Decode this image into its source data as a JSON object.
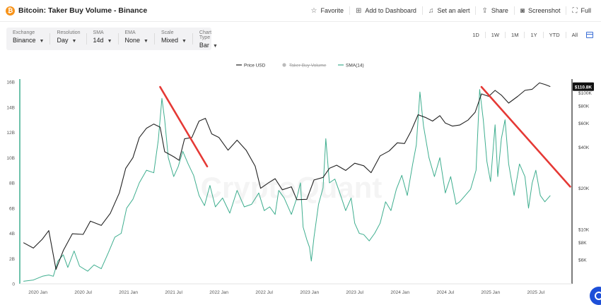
{
  "header": {
    "title": "Bitcoin: Taker Buy Volume - Binance",
    "actions": [
      {
        "label": "Favorite",
        "icon": "star-icon"
      },
      {
        "label": "Add to Dashboard",
        "icon": "dashboard-add-icon"
      },
      {
        "label": "Set an alert",
        "icon": "bell-icon"
      },
      {
        "label": "Share",
        "icon": "share-icon"
      },
      {
        "label": "Screenshot",
        "icon": "camera-icon"
      },
      {
        "label": "Full",
        "icon": "fullscreen-icon"
      }
    ]
  },
  "toolbar": {
    "controls": [
      {
        "label": "Exchange",
        "value": "Binance"
      },
      {
        "label": "Resolution",
        "value": "Day"
      },
      {
        "label": "SMA",
        "value": "14d"
      },
      {
        "label": "EMA",
        "value": "None"
      },
      {
        "label": "Scale",
        "value": "Mixed"
      },
      {
        "label": "Chart Type",
        "value": "Bar"
      }
    ]
  },
  "time_ranges": [
    "1D",
    "1W",
    "1M",
    "1Y",
    "YTD",
    "All"
  ],
  "watermark": "CryptoQuant",
  "chart_data": {
    "type": "line",
    "title": "",
    "legend": [
      {
        "name": "Price USD",
        "color": "#222222",
        "style": "line"
      },
      {
        "name": "Taker Buy Volume",
        "color": "#bbbbbb",
        "style": "dot",
        "disabled": true
      },
      {
        "name": "SMA(14)",
        "color": "#3fae8f",
        "style": "line"
      }
    ],
    "legend_position": "top-center",
    "x_ticks": [
      "2020 Jan",
      "2020 Jul",
      "2021 Jan",
      "2021 Jul",
      "2022 Jan",
      "2022 Jul",
      "2023 Jan",
      "2023 Jul",
      "2024 Jan",
      "2024 Jul",
      "2025 Jan",
      "2025 Jul"
    ],
    "x_range": [
      2019.8,
      2025.9
    ],
    "left_axis": {
      "ticks": [
        "0",
        "2B",
        "4B",
        "6B",
        "8B",
        "10B",
        "12B",
        "14B",
        "16B"
      ],
      "values": [
        0,
        2,
        4,
        6,
        8,
        10,
        12,
        14,
        16
      ],
      "unit": "B",
      "range": [
        0,
        16
      ]
    },
    "right_axis": {
      "scale": "log",
      "ticks": [
        "$6K",
        "$8K",
        "$10K",
        "$20K",
        "$40K",
        "$60K",
        "$80K",
        "$100K"
      ],
      "values": [
        6000,
        8000,
        10000,
        20000,
        40000,
        60000,
        80000,
        100000
      ],
      "range": [
        4000,
        120000
      ]
    },
    "current_price_label": "$110.8K",
    "current_price": 110800,
    "series": [
      {
        "name": "Price USD",
        "axis": "right",
        "color": "#222222",
        "points": [
          [
            2019.84,
            8000
          ],
          [
            2019.95,
            7300
          ],
          [
            2020.05,
            8500
          ],
          [
            2020.12,
            9800
          ],
          [
            2020.2,
            5100
          ],
          [
            2020.28,
            7000
          ],
          [
            2020.38,
            9300
          ],
          [
            2020.5,
            9200
          ],
          [
            2020.58,
            11500
          ],
          [
            2020.7,
            10700
          ],
          [
            2020.8,
            13100
          ],
          [
            2020.9,
            18500
          ],
          [
            2020.97,
            28000
          ],
          [
            2021.05,
            33500
          ],
          [
            2021.12,
            47000
          ],
          [
            2021.2,
            55000
          ],
          [
            2021.28,
            59000
          ],
          [
            2021.35,
            56000
          ],
          [
            2021.4,
            37000
          ],
          [
            2021.5,
            34000
          ],
          [
            2021.56,
            32000
          ],
          [
            2021.62,
            46000
          ],
          [
            2021.7,
            47000
          ],
          [
            2021.78,
            62000
          ],
          [
            2021.85,
            65000
          ],
          [
            2021.92,
            50000
          ],
          [
            2022.0,
            47000
          ],
          [
            2022.1,
            38000
          ],
          [
            2022.2,
            45000
          ],
          [
            2022.3,
            38000
          ],
          [
            2022.4,
            29000
          ],
          [
            2022.46,
            20000
          ],
          [
            2022.55,
            22000
          ],
          [
            2022.62,
            23500
          ],
          [
            2022.7,
            19500
          ],
          [
            2022.8,
            20500
          ],
          [
            2022.86,
            16500
          ],
          [
            2022.97,
            16600
          ],
          [
            2023.05,
            23000
          ],
          [
            2023.15,
            24000
          ],
          [
            2023.22,
            28000
          ],
          [
            2023.3,
            29500
          ],
          [
            2023.4,
            27000
          ],
          [
            2023.5,
            30500
          ],
          [
            2023.6,
            29200
          ],
          [
            2023.68,
            26000
          ],
          [
            2023.78,
            34500
          ],
          [
            2023.88,
            37500
          ],
          [
            2023.97,
            43000
          ],
          [
            2024.05,
            42500
          ],
          [
            2024.12,
            52000
          ],
          [
            2024.2,
            69000
          ],
          [
            2024.28,
            66000
          ],
          [
            2024.36,
            62000
          ],
          [
            2024.44,
            68000
          ],
          [
            2024.5,
            60000
          ],
          [
            2024.58,
            57000
          ],
          [
            2024.66,
            58000
          ],
          [
            2024.75,
            63000
          ],
          [
            2024.83,
            72000
          ],
          [
            2024.9,
            98000
          ],
          [
            2024.98,
            94000
          ],
          [
            2025.05,
            104000
          ],
          [
            2025.12,
            96000
          ],
          [
            2025.2,
            84000
          ],
          [
            2025.3,
            94000
          ],
          [
            2025.38,
            104000
          ],
          [
            2025.46,
            106000
          ],
          [
            2025.54,
            118000
          ],
          [
            2025.6,
            115000
          ],
          [
            2025.66,
            111000
          ]
        ]
      },
      {
        "name": "SMA(14)",
        "axis": "left",
        "color": "#3fae8f",
        "points": [
          [
            2019.84,
            0.2
          ],
          [
            2019.95,
            0.3
          ],
          [
            2020.05,
            0.6
          ],
          [
            2020.12,
            0.7
          ],
          [
            2020.17,
            0.6
          ],
          [
            2020.22,
            1.8
          ],
          [
            2020.28,
            2.3
          ],
          [
            2020.33,
            1.3
          ],
          [
            2020.4,
            2.6
          ],
          [
            2020.46,
            1.4
          ],
          [
            2020.55,
            1.0
          ],
          [
            2020.62,
            1.5
          ],
          [
            2020.7,
            1.2
          ],
          [
            2020.78,
            2.5
          ],
          [
            2020.85,
            3.7
          ],
          [
            2020.92,
            4.0
          ],
          [
            2020.98,
            6.0
          ],
          [
            2021.05,
            6.7
          ],
          [
            2021.12,
            8.0
          ],
          [
            2021.2,
            9.0
          ],
          [
            2021.28,
            8.8
          ],
          [
            2021.33,
            11.4
          ],
          [
            2021.37,
            14.7
          ],
          [
            2021.4,
            13.0
          ],
          [
            2021.44,
            10.0
          ],
          [
            2021.5,
            8.5
          ],
          [
            2021.55,
            9.3
          ],
          [
            2021.6,
            10.5
          ],
          [
            2021.66,
            9.5
          ],
          [
            2021.72,
            8.6
          ],
          [
            2021.78,
            7.0
          ],
          [
            2021.84,
            6.2
          ],
          [
            2021.9,
            7.8
          ],
          [
            2021.96,
            6.1
          ],
          [
            2022.04,
            6.8
          ],
          [
            2022.12,
            5.6
          ],
          [
            2022.2,
            7.4
          ],
          [
            2022.28,
            6.1
          ],
          [
            2022.36,
            6.3
          ],
          [
            2022.44,
            7.2
          ],
          [
            2022.5,
            5.8
          ],
          [
            2022.56,
            6.1
          ],
          [
            2022.62,
            5.5
          ],
          [
            2022.66,
            7.4
          ],
          [
            2022.72,
            6.8
          ],
          [
            2022.8,
            5.5
          ],
          [
            2022.86,
            6.8
          ],
          [
            2022.9,
            8.0
          ],
          [
            2022.93,
            4.5
          ],
          [
            2022.97,
            3.5
          ],
          [
            2023.0,
            2.9
          ],
          [
            2023.02,
            1.8
          ],
          [
            2023.05,
            3.7
          ],
          [
            2023.1,
            6.3
          ],
          [
            2023.15,
            7.6
          ],
          [
            2023.18,
            11.5
          ],
          [
            2023.22,
            8.0
          ],
          [
            2023.28,
            8.3
          ],
          [
            2023.34,
            7.1
          ],
          [
            2023.4,
            5.8
          ],
          [
            2023.46,
            6.8
          ],
          [
            2023.5,
            4.8
          ],
          [
            2023.55,
            4.0
          ],
          [
            2023.6,
            3.9
          ],
          [
            2023.66,
            3.4
          ],
          [
            2023.72,
            4.0
          ],
          [
            2023.78,
            4.8
          ],
          [
            2023.84,
            6.5
          ],
          [
            2023.9,
            5.8
          ],
          [
            2023.96,
            7.5
          ],
          [
            2024.02,
            8.6
          ],
          [
            2024.08,
            7.0
          ],
          [
            2024.14,
            9.5
          ],
          [
            2024.18,
            11.0
          ],
          [
            2024.22,
            15.2
          ],
          [
            2024.26,
            12.5
          ],
          [
            2024.32,
            10.0
          ],
          [
            2024.38,
            8.5
          ],
          [
            2024.44,
            10.0
          ],
          [
            2024.5,
            7.2
          ],
          [
            2024.56,
            8.5
          ],
          [
            2024.62,
            6.3
          ],
          [
            2024.66,
            6.5
          ],
          [
            2024.72,
            7.0
          ],
          [
            2024.78,
            7.5
          ],
          [
            2024.84,
            9.0
          ],
          [
            2024.88,
            15.4
          ],
          [
            2024.92,
            13.0
          ],
          [
            2024.96,
            9.7
          ],
          [
            2025.0,
            8.1
          ],
          [
            2025.05,
            12.6
          ],
          [
            2025.08,
            8.5
          ],
          [
            2025.12,
            11.5
          ],
          [
            2025.16,
            13.0
          ],
          [
            2025.2,
            9.5
          ],
          [
            2025.26,
            7.0
          ],
          [
            2025.32,
            9.5
          ],
          [
            2025.38,
            8.5
          ],
          [
            2025.42,
            6.0
          ],
          [
            2025.46,
            8.0
          ],
          [
            2025.5,
            9.0
          ],
          [
            2025.55,
            7.0
          ],
          [
            2025.6,
            6.5
          ],
          [
            2025.66,
            7.0
          ]
        ]
      }
    ],
    "annotations": [
      {
        "type": "trendline",
        "color": "#e53935",
        "from": {
          "x": 2021.35,
          "y": 15.6
        },
        "to": {
          "x": 2021.87,
          "y": 9.3
        }
      },
      {
        "type": "trendline",
        "color": "#e53935",
        "from": {
          "x": 2024.9,
          "y": 15.6
        },
        "to": {
          "x": 2025.88,
          "y": 7.7
        }
      }
    ]
  }
}
